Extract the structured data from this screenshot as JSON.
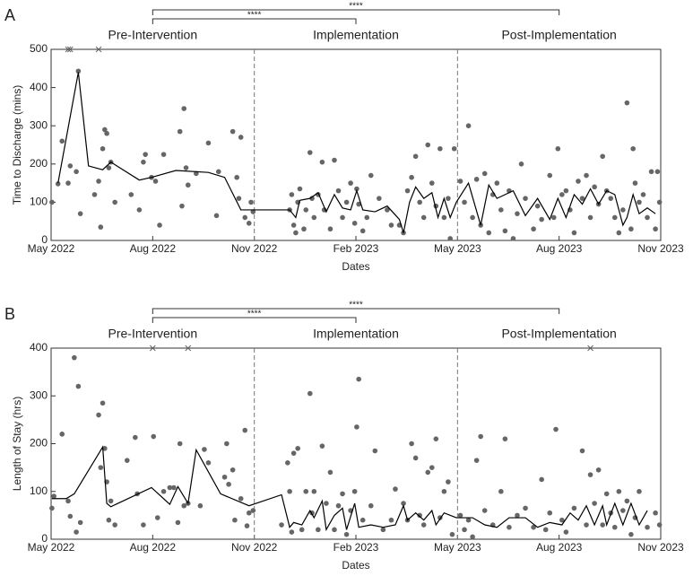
{
  "chart_data": [
    {
      "type": "scatter",
      "panel_label": "A",
      "ylabel": "Time to Discharge (mins)",
      "xlabel": "Dates",
      "phases": [
        "Pre-Intervention",
        "Implementation",
        "Post-Implementation"
      ],
      "phase_bounds": [
        2022.833,
        2023.333
      ],
      "comparisons": [
        {
          "label": "****",
          "from": 2022.583,
          "to": 2023.083
        },
        {
          "label": "****",
          "from": 2022.583,
          "to": 2023.583
        }
      ],
      "xlim": [
        2022.333,
        2023.833
      ],
      "ylim": [
        0,
        500
      ],
      "xticks": [
        {
          "value": 2022.333,
          "label": "May 2022"
        },
        {
          "value": 2022.583,
          "label": "Aug 2022"
        },
        {
          "value": 2022.833,
          "label": "Nov 2022"
        },
        {
          "value": 2023.083,
          "label": "Feb 2023"
        },
        {
          "value": 2023.333,
          "label": "May 2023"
        },
        {
          "value": 2023.583,
          "label": "Aug 2023"
        },
        {
          "value": 2023.833,
          "label": "Nov 2023"
        }
      ],
      "yticks": [
        0,
        100,
        200,
        300,
        400,
        500
      ],
      "points": {
        "color": "#666666",
        "x": [
          2022.335,
          2022.35,
          2022.36,
          2022.375,
          2022.38,
          2022.395,
          2022.4,
          2022.405,
          2022.44,
          2022.45,
          2022.455,
          2022.46,
          2022.465,
          2022.47,
          2022.475,
          2022.48,
          2022.49,
          2022.53,
          2022.55,
          2022.56,
          2022.565,
          2022.58,
          2022.59,
          2022.6,
          2022.61,
          2022.65,
          2022.655,
          2022.66,
          2022.665,
          2022.67,
          2022.69,
          2022.72,
          2022.74,
          2022.745,
          2022.78,
          2022.79,
          2022.8,
          2022.795,
          2022.81,
          2022.82,
          2022.825,
          2022.83,
          2022.92,
          2022.925,
          2022.93,
          2022.935,
          2022.94,
          2022.945,
          2022.955,
          2022.96,
          2022.97,
          2022.975,
          2022.98,
          2022.99,
          2023.0,
          2023.005,
          2023.02,
          2023.03,
          2023.04,
          2023.05,
          2023.06,
          2023.07,
          2023.08,
          2023.085,
          2023.09,
          2023.1,
          2023.11,
          2023.12,
          2023.14,
          2023.16,
          2023.17,
          2023.19,
          2023.2,
          2023.21,
          2023.22,
          2023.23,
          2023.24,
          2023.25,
          2023.26,
          2023.27,
          2023.28,
          2023.29,
          2023.3,
          2023.31,
          2023.315,
          2023.325,
          2023.34,
          2023.35,
          2023.36,
          2023.37,
          2023.38,
          2023.39,
          2023.4,
          2023.41,
          2023.42,
          2023.43,
          2023.44,
          2023.45,
          2023.46,
          2023.47,
          2023.48,
          2023.49,
          2023.5,
          2023.52,
          2023.53,
          2023.54,
          2023.56,
          2023.57,
          2023.58,
          2023.59,
          2023.6,
          2023.61,
          2023.62,
          2023.63,
          2023.64,
          2023.65,
          2023.66,
          2023.67,
          2023.68,
          2023.69,
          2023.7,
          2023.71,
          2023.72,
          2023.73,
          2023.74,
          2023.75,
          2023.76,
          2023.765,
          2023.77,
          2023.78,
          2023.79,
          2023.8,
          2023.81,
          2023.82,
          2023.825,
          2023.83
        ],
        "y": [
          100,
          148,
          260,
          150,
          195,
          180,
          443,
          70,
          120,
          155,
          35,
          240,
          290,
          280,
          190,
          205,
          100,
          120,
          80,
          205,
          225,
          165,
          155,
          40,
          225,
          285,
          90,
          345,
          190,
          145,
          175,
          255,
          65,
          180,
          285,
          165,
          270,
          110,
          60,
          45,
          100,
          75,
          80,
          120,
          40,
          20,
          100,
          135,
          30,
          80,
          230,
          110,
          60,
          120,
          205,
          80,
          30,
          210,
          130,
          60,
          100,
          150,
          45,
          135,
          95,
          25,
          60,
          170,
          110,
          80,
          40,
          40,
          20,
          130,
          165,
          220,
          100,
          60,
          250,
          150,
          90,
          240,
          60,
          110,
          5,
          240,
          155,
          100,
          300,
          60,
          160,
          40,
          175,
          20,
          120,
          150,
          80,
          25,
          130,
          5,
          70,
          200,
          110,
          30,
          90,
          55,
          170,
          60,
          240,
          120,
          130,
          80,
          20,
          155,
          110,
          170,
          60,
          140,
          95,
          220,
          130,
          110,
          60,
          20,
          80,
          360,
          30,
          240,
          150,
          100,
          120,
          60,
          180,
          30,
          180,
          100
        ]
      },
      "trend": {
        "color": "#000000",
        "x": [
          2022.35,
          2022.4,
          2022.425,
          2022.46,
          2022.48,
          2022.55,
          2022.58,
          2022.64,
          2022.72,
          2022.76,
          2022.8,
          2022.92,
          2022.935,
          2022.945,
          2022.97,
          2022.99,
          2023.01,
          2023.03,
          2023.05,
          2023.07,
          2023.085,
          2023.1,
          2023.13,
          2023.16,
          2023.19,
          2023.2,
          2023.215,
          2023.23,
          2023.25,
          2023.27,
          2023.285,
          2023.3,
          2023.315,
          2023.33,
          2023.36,
          2023.39,
          2023.41,
          2023.43,
          2023.47,
          2023.5,
          2023.53,
          2023.56,
          2023.58,
          2023.6,
          2023.62,
          2023.64,
          2023.66,
          2023.68,
          2023.7,
          2023.72,
          2023.74,
          2023.75,
          2023.765,
          2023.78,
          2023.8,
          2023.82
        ],
        "y": [
          150,
          440,
          195,
          185,
          205,
          158,
          165,
          183,
          178,
          165,
          80,
          80,
          60,
          105,
          110,
          125,
          75,
          120,
          85,
          80,
          130,
          80,
          75,
          90,
          55,
          20,
          100,
          140,
          110,
          125,
          60,
          110,
          60,
          100,
          150,
          40,
          145,
          110,
          130,
          65,
          110,
          55,
          110,
          60,
          120,
          95,
          135,
          95,
          130,
          120,
          40,
          60,
          120,
          70,
          85,
          70
        ]
      },
      "clipped": {
        "marker": "x",
        "x": [
          2022.375,
          2022.38,
          2022.45
        ]
      }
    },
    {
      "type": "scatter",
      "panel_label": "B",
      "ylabel": "Length of Stay (hrs)",
      "xlabel": "Dates",
      "phases": [
        "Pre-Intervention",
        "Implementation",
        "Post-Implementation"
      ],
      "phase_bounds": [
        2022.833,
        2023.333
      ],
      "comparisons": [
        {
          "label": "****",
          "from": 2022.583,
          "to": 2023.083
        },
        {
          "label": "****",
          "from": 2022.583,
          "to": 2023.583
        }
      ],
      "xlim": [
        2022.333,
        2023.833
      ],
      "ylim": [
        0,
        400
      ],
      "xticks": [
        {
          "value": 2022.333,
          "label": "May 2022"
        },
        {
          "value": 2022.583,
          "label": "Aug 2022"
        },
        {
          "value": 2022.833,
          "label": "Nov 2022"
        },
        {
          "value": 2023.083,
          "label": "Feb 2023"
        },
        {
          "value": 2023.333,
          "label": "May 2023"
        },
        {
          "value": 2023.583,
          "label": "Aug 2023"
        },
        {
          "value": 2023.833,
          "label": "Nov 2023"
        }
      ],
      "yticks": [
        0,
        100,
        200,
        300,
        400
      ],
      "points": {
        "color": "#666666",
        "x": [
          2022.335,
          2022.34,
          2022.36,
          2022.375,
          2022.38,
          2022.39,
          2022.395,
          2022.4,
          2022.405,
          2022.45,
          2022.455,
          2022.46,
          2022.465,
          2022.47,
          2022.475,
          2022.48,
          2022.49,
          2022.52,
          2022.54,
          2022.545,
          2022.56,
          2022.585,
          2022.595,
          2022.61,
          2022.625,
          2022.635,
          2022.645,
          2022.65,
          2022.66,
          2022.67,
          2022.7,
          2022.71,
          2022.72,
          2022.76,
          2022.765,
          2022.77,
          2022.78,
          2022.785,
          2022.8,
          2022.81,
          2022.815,
          2022.82,
          2022.83,
          2022.9,
          2022.915,
          2022.92,
          2022.925,
          2022.93,
          2022.94,
          2022.95,
          2022.96,
          2022.97,
          2022.975,
          2022.98,
          2022.99,
          2023.0,
          2023.01,
          2023.02,
          2023.03,
          2023.04,
          2023.05,
          2023.06,
          2023.07,
          2023.08,
          2023.085,
          2023.09,
          2023.1,
          2023.12,
          2023.13,
          2023.15,
          2023.17,
          2023.18,
          2023.2,
          2023.21,
          2023.22,
          2023.23,
          2023.24,
          2023.25,
          2023.26,
          2023.27,
          2023.28,
          2023.29,
          2023.3,
          2023.31,
          2023.32,
          2023.34,
          2023.35,
          2023.36,
          2023.37,
          2023.38,
          2023.39,
          2023.4,
          2023.42,
          2023.44,
          2023.45,
          2023.46,
          2023.48,
          2023.5,
          2023.52,
          2023.54,
          2023.55,
          2023.56,
          2023.575,
          2023.59,
          2023.6,
          2023.62,
          2023.64,
          2023.65,
          2023.66,
          2023.67,
          2023.68,
          2023.69,
          2023.7,
          2023.71,
          2023.72,
          2023.73,
          2023.74,
          2023.75,
          2023.76,
          2023.77,
          2023.78,
          2023.8,
          2023.82,
          2023.83
        ],
        "y": [
          65,
          90,
          220,
          80,
          48,
          380,
          15,
          320,
          35,
          260,
          150,
          285,
          190,
          120,
          40,
          80,
          30,
          165,
          213,
          95,
          30,
          215,
          45,
          100,
          108,
          108,
          35,
          200,
          70,
          75,
          70,
          188,
          160,
          130,
          200,
          115,
          145,
          40,
          85,
          228,
          28,
          55,
          60,
          30,
          160,
          100,
          15,
          180,
          190,
          20,
          100,
          305,
          55,
          100,
          20,
          195,
          75,
          140,
          20,
          70,
          95,
          10,
          60,
          100,
          235,
          335,
          40,
          70,
          185,
          20,
          40,
          105,
          75,
          40,
          200,
          170,
          50,
          30,
          140,
          150,
          210,
          45,
          100,
          120,
          10,
          50,
          20,
          40,
          5,
          165,
          215,
          60,
          30,
          100,
          210,
          25,
          50,
          65,
          25,
          125,
          20,
          55,
          230,
          40,
          15,
          65,
          185,
          30,
          135,
          75,
          145,
          30,
          95,
          55,
          25,
          100,
          60,
          80,
          10,
          45,
          100,
          25,
          55,
          30
        ]
      },
      "trend": {
        "color": "#000000",
        "x": [
          2022.335,
          2022.37,
          2022.39,
          2022.46,
          2022.47,
          2022.48,
          2022.58,
          2022.625,
          2022.645,
          2022.67,
          2022.69,
          2022.75,
          2022.82,
          2022.9,
          2022.92,
          2022.93,
          2022.95,
          2022.97,
          2022.98,
          2023.0,
          2023.01,
          2023.03,
          2023.05,
          2023.06,
          2023.08,
          2023.09,
          2023.12,
          2023.15,
          2023.18,
          2023.2,
          2023.21,
          2023.23,
          2023.25,
          2023.27,
          2023.28,
          2023.3,
          2023.33,
          2023.37,
          2023.4,
          2023.43,
          2023.46,
          2023.5,
          2023.53,
          2023.56,
          2023.59,
          2023.61,
          2023.63,
          2023.65,
          2023.67,
          2023.69,
          2023.7,
          2023.72,
          2023.74,
          2023.76,
          2023.78,
          2023.8
        ],
        "y": [
          85,
          85,
          95,
          193,
          75,
          68,
          108,
          73,
          110,
          75,
          187,
          95,
          70,
          93,
          25,
          35,
          30,
          60,
          45,
          80,
          20,
          50,
          65,
          20,
          75,
          25,
          30,
          25,
          30,
          70,
          40,
          55,
          40,
          60,
          30,
          55,
          45,
          45,
          30,
          25,
          45,
          45,
          25,
          35,
          30,
          55,
          40,
          70,
          30,
          70,
          30,
          75,
          30,
          75,
          30,
          60
        ]
      },
      "clipped": {
        "marker": "x",
        "x": [
          2022.583,
          2022.67,
          2023.66
        ]
      }
    }
  ]
}
